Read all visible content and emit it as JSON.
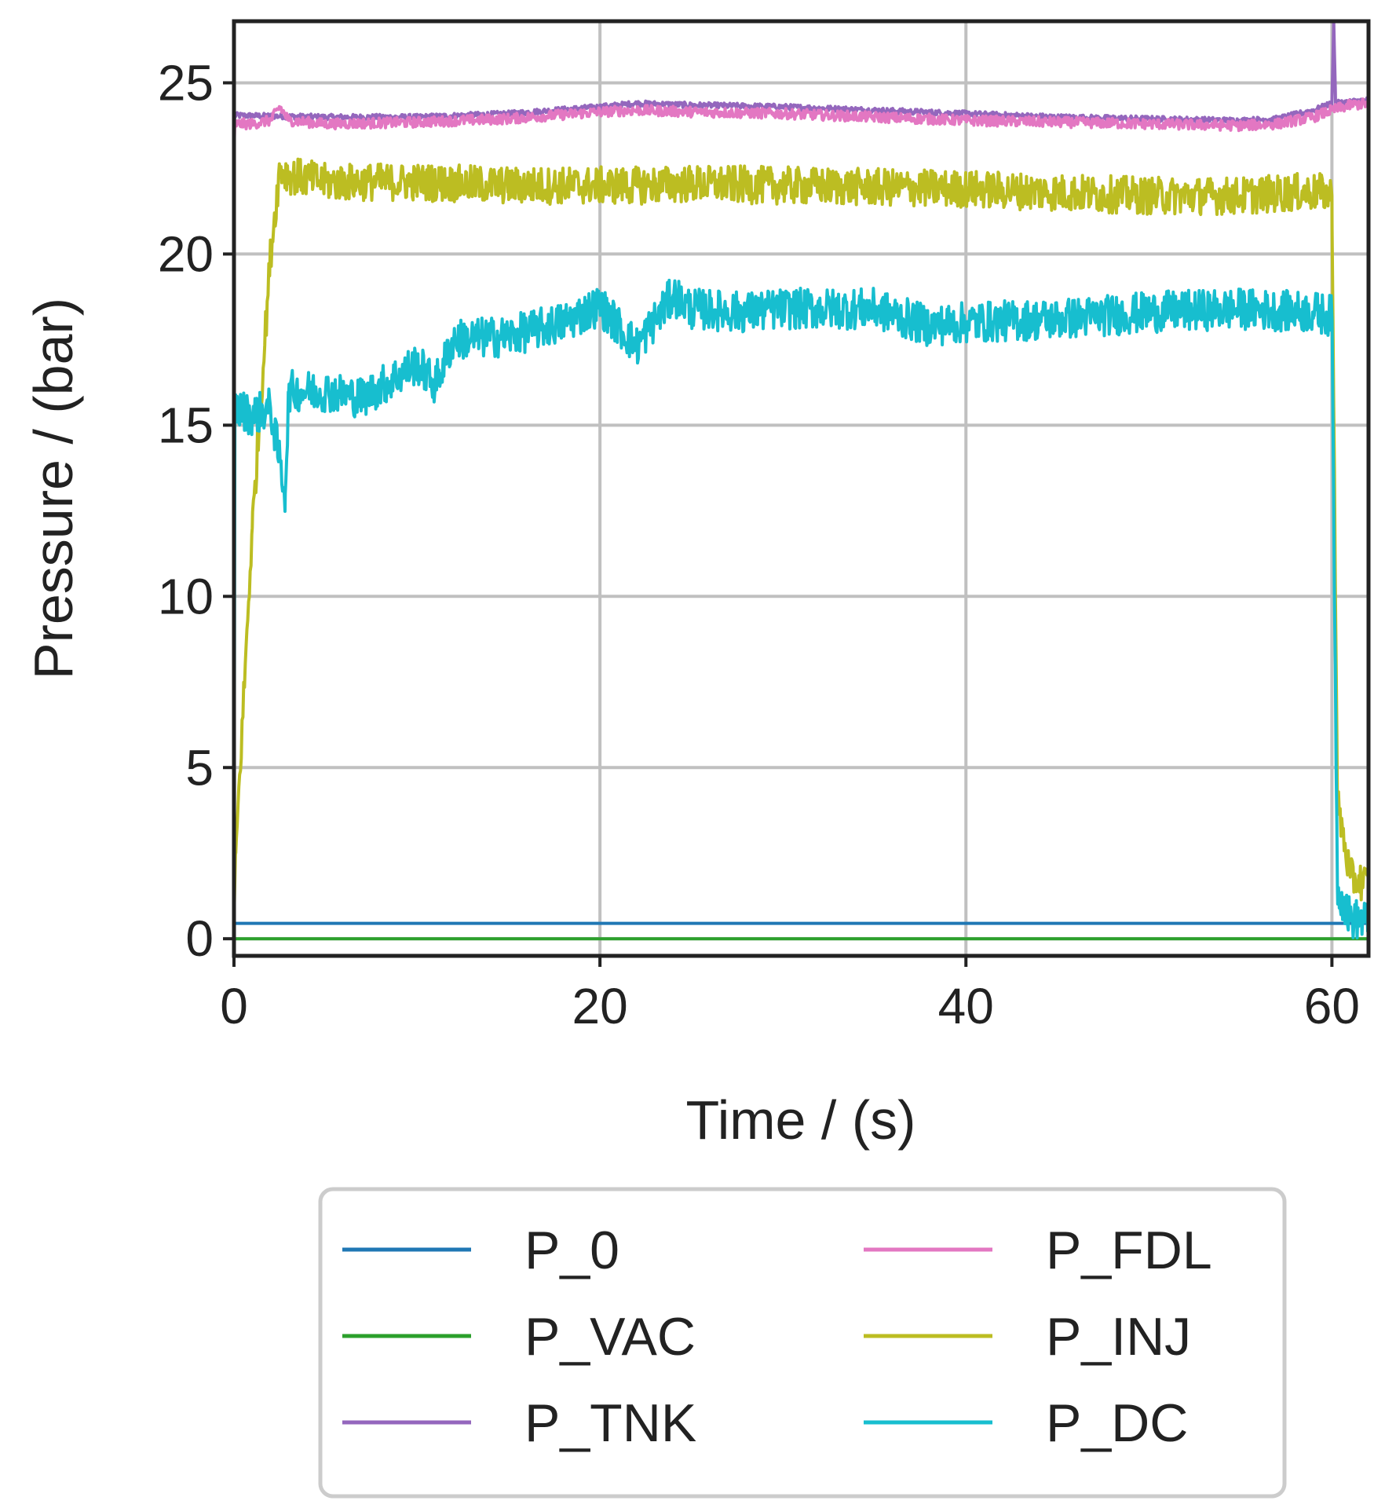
{
  "chart_data": {
    "type": "line",
    "title": "",
    "xlabel": "Time / (s)",
    "ylabel": "Pressure / (bar)",
    "xlim": [
      0,
      62
    ],
    "ylim": [
      -0.5,
      26.8
    ],
    "xticks": [
      0,
      20,
      40,
      60
    ],
    "yticks": [
      0,
      5,
      10,
      15,
      20,
      25
    ],
    "grid": true,
    "legend_position": "bottom",
    "legend_columns": 2,
    "series": [
      {
        "name": "P_0",
        "color": "#1f77b4",
        "x": [
          0,
          62
        ],
        "y": [
          0.45,
          0.45
        ],
        "noise": 0
      },
      {
        "name": "P_VAC",
        "color": "#2ca02c",
        "x": [
          0,
          62
        ],
        "y": [
          0.0,
          0.0
        ],
        "noise": 0
      },
      {
        "name": "P_TNK",
        "color": "#9467bd",
        "x": [
          0,
          0.05,
          5,
          10,
          15,
          20,
          22,
          25,
          30,
          35,
          40,
          45,
          50,
          55,
          57,
          59,
          60,
          60.1,
          60.2,
          61,
          62
        ],
        "y": [
          23.5,
          24.05,
          24.0,
          24.0,
          24.1,
          24.3,
          24.4,
          24.35,
          24.3,
          24.2,
          24.1,
          24.0,
          23.95,
          23.9,
          23.95,
          24.2,
          24.4,
          26.8,
          24.4,
          24.45,
          24.5
        ],
        "noise": 0.08
      },
      {
        "name": "P_FDL",
        "color": "#e377c2",
        "x": [
          0,
          0.05,
          1,
          2,
          2.5,
          3,
          5,
          10,
          15,
          20,
          22,
          25,
          30,
          35,
          40,
          45,
          50,
          55,
          57,
          59,
          60,
          61,
          62
        ],
        "y": [
          23.0,
          23.8,
          23.8,
          23.9,
          24.3,
          23.9,
          23.8,
          23.85,
          23.95,
          24.15,
          24.2,
          24.15,
          24.1,
          24.0,
          23.9,
          23.85,
          23.8,
          23.75,
          23.8,
          24.0,
          24.2,
          24.35,
          24.4
        ],
        "noise": 0.15
      },
      {
        "name": "P_INJ",
        "color": "#bcbd22",
        "x": [
          0,
          0.1,
          1,
          2,
          2.5,
          3,
          5,
          10,
          15,
          20,
          22,
          25,
          30,
          35,
          40,
          45,
          50,
          55,
          58,
          59.5,
          60,
          60.3,
          61,
          62
        ],
        "y": [
          0.5,
          2.5,
          12,
          20,
          22.5,
          22.3,
          22.1,
          22.1,
          22.0,
          22.0,
          22.0,
          22.05,
          22.0,
          21.95,
          21.9,
          21.8,
          21.7,
          21.7,
          21.8,
          21.8,
          21.7,
          4.0,
          1.8,
          1.6
        ],
        "noise": 0.55
      },
      {
        "name": "P_DC",
        "color": "#17becf",
        "x": [
          0,
          0.05,
          1,
          2,
          2.8,
          3,
          5,
          7,
          10,
          11,
          12,
          15,
          18,
          20,
          22,
          24,
          25,
          28,
          30,
          35,
          38,
          40,
          45,
          50,
          55,
          59,
          60,
          60.3,
          61,
          62
        ],
        "y": [
          0.3,
          15.5,
          15.3,
          15.5,
          13.0,
          16.0,
          16.0,
          15.8,
          16.8,
          16.2,
          17.5,
          17.6,
          18.0,
          18.5,
          17.3,
          18.8,
          18.4,
          18.3,
          18.4,
          18.4,
          17.9,
          18.0,
          18.1,
          18.3,
          18.4,
          18.3,
          18.2,
          1.5,
          0.6,
          0.5
        ],
        "noise": 0.6
      }
    ]
  }
}
